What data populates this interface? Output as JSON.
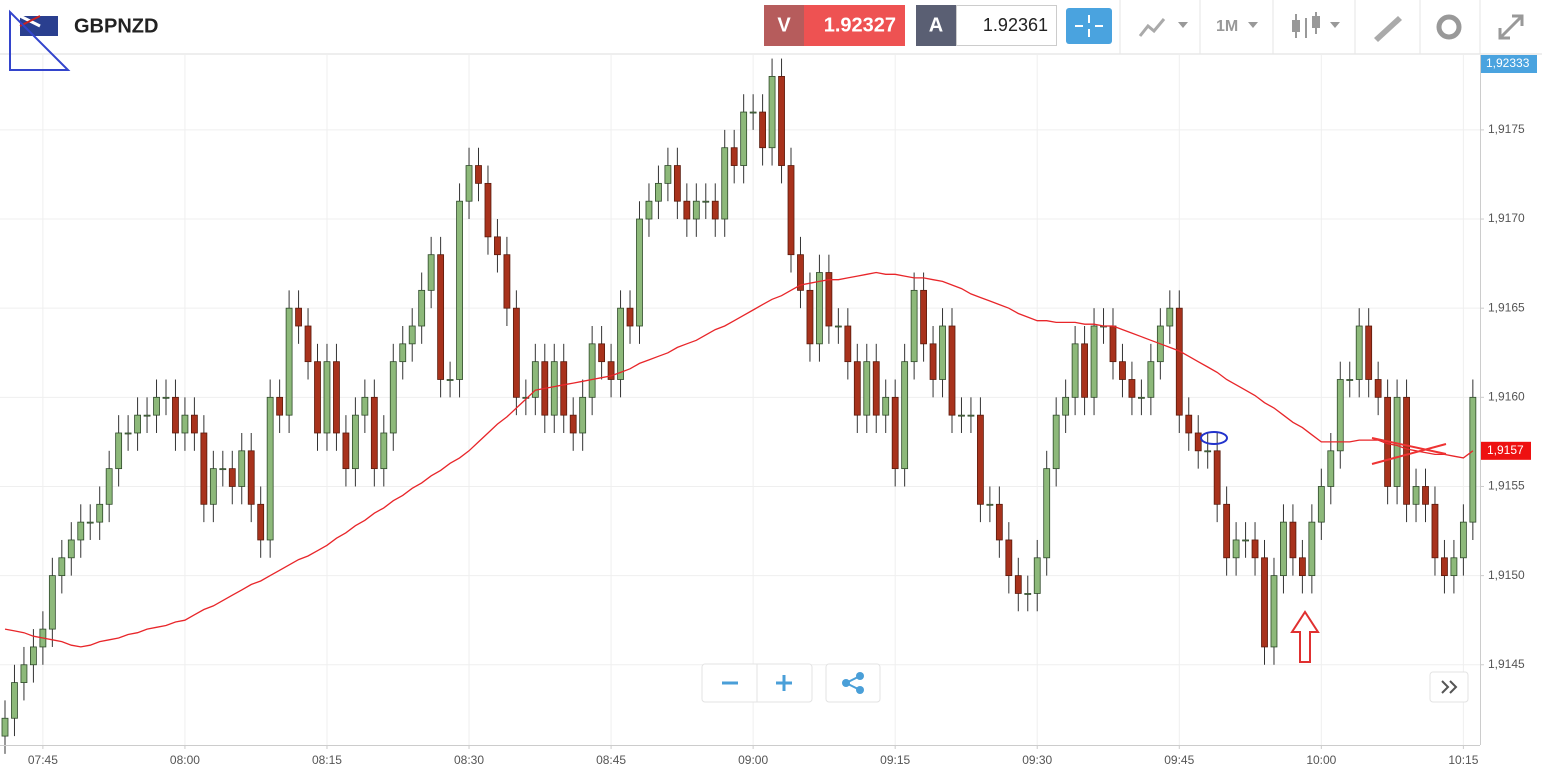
{
  "toolbar": {
    "symbol": "GBPNZD",
    "sell_label": "V",
    "sell_price": "1.92327",
    "buy_label": "A",
    "buy_price": "1.92361",
    "timeframe": "1M"
  },
  "chart_data": {
    "type": "candlestick",
    "x": [
      "07:41",
      "07:42",
      "07:43",
      "07:44",
      "07:45",
      "07:46",
      "07:47",
      "07:48",
      "07:49",
      "07:50",
      "07:51",
      "07:52",
      "07:53",
      "07:54",
      "07:55",
      "07:56",
      "07:57",
      "07:58",
      "07:59",
      "08:00",
      "08:01",
      "08:02",
      "08:03",
      "08:04",
      "08:05",
      "08:06",
      "08:07",
      "08:08",
      "08:09",
      "08:10",
      "08:11",
      "08:12",
      "08:13",
      "08:14",
      "08:15",
      "08:16",
      "08:17",
      "08:18",
      "08:19",
      "08:20",
      "08:21",
      "08:22",
      "08:23",
      "08:24",
      "08:25",
      "08:26",
      "08:27",
      "08:28",
      "08:29",
      "08:30",
      "08:31",
      "08:32",
      "08:33",
      "08:34",
      "08:35",
      "08:36",
      "08:37",
      "08:38",
      "08:39",
      "08:40",
      "08:41",
      "08:42",
      "08:43",
      "08:44",
      "08:45",
      "08:46",
      "08:47",
      "08:48",
      "08:49",
      "08:50",
      "08:51",
      "08:52",
      "08:53",
      "08:54",
      "08:55",
      "08:56",
      "08:57",
      "08:58",
      "08:59",
      "09:00",
      "09:01",
      "09:02",
      "09:03",
      "09:04",
      "09:05",
      "09:06",
      "09:07",
      "09:08",
      "09:09",
      "09:10",
      "09:11",
      "09:12",
      "09:13",
      "09:14",
      "09:15",
      "09:16",
      "09:17",
      "09:18",
      "09:19",
      "09:20",
      "09:21",
      "09:22",
      "09:23",
      "09:24",
      "09:25",
      "09:26",
      "09:27",
      "09:28",
      "09:29",
      "09:30",
      "09:31",
      "09:32",
      "09:33",
      "09:34",
      "09:35",
      "09:36",
      "09:37",
      "09:38",
      "09:39",
      "09:40",
      "09:41",
      "09:42",
      "09:43",
      "09:44",
      "09:45",
      "09:46",
      "09:47",
      "09:48",
      "09:49",
      "09:50",
      "09:51",
      "09:52",
      "09:53",
      "09:54",
      "09:55",
      "09:56",
      "09:57",
      "09:58",
      "09:59",
      "10:00",
      "10:01",
      "10:02",
      "10:03",
      "10:04",
      "10:05",
      "10:06",
      "10:07",
      "10:08",
      "10:09",
      "10:10",
      "10:11",
      "10:12",
      "10:13",
      "10:14",
      "10:15",
      "10:16"
    ],
    "open": [
      1.9141,
      1.9142,
      1.9144,
      1.9145,
      1.9146,
      1.9147,
      1.915,
      1.9151,
      1.9152,
      1.9153,
      1.9153,
      1.9154,
      1.9156,
      1.9158,
      1.9158,
      1.9159,
      1.9159,
      1.916,
      1.916,
      1.9158,
      1.9159,
      1.9158,
      1.9154,
      1.9156,
      1.9156,
      1.9155,
      1.9157,
      1.9154,
      1.9152,
      1.916,
      1.9159,
      1.9165,
      1.9164,
      1.9162,
      1.9158,
      1.9162,
      1.9158,
      1.9156,
      1.9159,
      1.916,
      1.9156,
      1.9158,
      1.9162,
      1.9163,
      1.9164,
      1.9166,
      1.9168,
      1.9161,
      1.9161,
      1.9171,
      1.9173,
      1.9172,
      1.9169,
      1.9168,
      1.9165,
      1.916,
      1.916,
      1.9162,
      1.9159,
      1.9162,
      1.9159,
      1.9158,
      1.916,
      1.9163,
      1.9162,
      1.9161,
      1.9165,
      1.9164,
      1.917,
      1.9171,
      1.9172,
      1.9173,
      1.9171,
      1.917,
      1.9171,
      1.9171,
      1.917,
      1.9174,
      1.9173,
      1.9176,
      1.9176,
      1.9174,
      1.9178,
      1.9173,
      1.9168,
      1.9166,
      1.9163,
      1.9167,
      1.9164,
      1.9164,
      1.9162,
      1.9159,
      1.9162,
      1.9159,
      1.916,
      1.9156,
      1.9162,
      1.9166,
      1.9163,
      1.9161,
      1.9164,
      1.9159,
      1.9159,
      1.9159,
      1.9154,
      1.9154,
      1.9152,
      1.915,
      1.9149,
      1.9149,
      1.9151,
      1.9156,
      1.9159,
      1.916,
      1.9163,
      1.916,
      1.9164,
      1.9164,
      1.9162,
      1.9161,
      1.916,
      1.916,
      1.9162,
      1.9164,
      1.9165,
      1.9159,
      1.9158,
      1.9157,
      1.9157,
      1.9154,
      1.9151,
      1.9152,
      1.9152,
      1.9151,
      1.9146,
      1.915,
      1.9153,
      1.9151,
      1.915,
      1.9153,
      1.9155,
      1.9157,
      1.9161,
      1.9161,
      1.9164,
      1.9161,
      1.916,
      1.9155,
      1.916,
      1.9154,
      1.9155,
      1.9154,
      1.9151,
      1.915,
      1.9151,
      1.9153
    ],
    "high": [
      1.9143,
      1.9145,
      1.9146,
      1.9147,
      1.9148,
      1.9151,
      1.9152,
      1.9153,
      1.9154,
      1.9154,
      1.9155,
      1.9157,
      1.9159,
      1.9159,
      1.916,
      1.916,
      1.9161,
      1.9161,
      1.9161,
      1.916,
      1.916,
      1.9159,
      1.9157,
      1.9157,
      1.9157,
      1.9158,
      1.9158,
      1.9155,
      1.9161,
      1.9161,
      1.9166,
      1.9166,
      1.9165,
      1.9163,
      1.9163,
      1.9163,
      1.9159,
      1.916,
      1.9161,
      1.9161,
      1.9159,
      1.9163,
      1.9164,
      1.9165,
      1.9167,
      1.9169,
      1.9169,
      1.9162,
      1.9172,
      1.9174,
      1.9174,
      1.9173,
      1.917,
      1.9169,
      1.9166,
      1.9161,
      1.9163,
      1.9163,
      1.9163,
      1.9163,
      1.916,
      1.9161,
      1.9164,
      1.9164,
      1.9163,
      1.9166,
      1.9166,
      1.9171,
      1.9172,
      1.9173,
      1.9174,
      1.9174,
      1.9172,
      1.9172,
      1.9172,
      1.9172,
      1.9175,
      1.9175,
      1.9177,
      1.9177,
      1.9177,
      1.9179,
      1.9179,
      1.9174,
      1.9169,
      1.9167,
      1.9168,
      1.9168,
      1.9165,
      1.9165,
      1.9163,
      1.9163,
      1.9163,
      1.9161,
      1.9161,
      1.9163,
      1.9167,
      1.9167,
      1.9164,
      1.9165,
      1.9165,
      1.916,
      1.916,
      1.916,
      1.9155,
      1.9155,
      1.9153,
      1.9151,
      1.915,
      1.9152,
      1.9157,
      1.916,
      1.9161,
      1.9164,
      1.9164,
      1.9165,
      1.9165,
      1.9165,
      1.9163,
      1.9162,
      1.9161,
      1.9163,
      1.9165,
      1.9166,
      1.9166,
      1.916,
      1.9159,
      1.9158,
      1.9158,
      1.9155,
      1.9153,
      1.9153,
      1.9153,
      1.9152,
      1.9151,
      1.9154,
      1.9154,
      1.9152,
      1.9154,
      1.9156,
      1.9158,
      1.9162,
      1.9162,
      1.9165,
      1.9165,
      1.9162,
      1.9161,
      1.9161,
      1.9161,
      1.9156,
      1.9156,
      1.9155,
      1.9152,
      1.9152,
      1.9154,
      1.9161
    ],
    "low": [
      1.914,
      1.9141,
      1.9143,
      1.9144,
      1.9145,
      1.9146,
      1.9149,
      1.915,
      1.9151,
      1.9152,
      1.9152,
      1.9153,
      1.9155,
      1.9157,
      1.9157,
      1.9158,
      1.9158,
      1.9159,
      1.9157,
      1.9157,
      1.9157,
      1.9153,
      1.9153,
      1.9155,
      1.9154,
      1.9154,
      1.9153,
      1.9151,
      1.9151,
      1.9158,
      1.9158,
      1.9163,
      1.9161,
      1.9157,
      1.9157,
      1.9157,
      1.9155,
      1.9155,
      1.9158,
      1.9155,
      1.9155,
      1.9157,
      1.9161,
      1.9162,
      1.9163,
      1.9165,
      1.916,
      1.916,
      1.916,
      1.917,
      1.9171,
      1.9168,
      1.9167,
      1.9164,
      1.9159,
      1.9159,
      1.9159,
      1.9158,
      1.9158,
      1.9158,
      1.9157,
      1.9157,
      1.9159,
      1.9161,
      1.916,
      1.916,
      1.9163,
      1.9163,
      1.9169,
      1.917,
      1.9171,
      1.917,
      1.9169,
      1.9169,
      1.917,
      1.9169,
      1.9169,
      1.9172,
      1.9172,
      1.9175,
      1.9173,
      1.9173,
      1.9172,
      1.9167,
      1.9165,
      1.9162,
      1.9162,
      1.9163,
      1.9163,
      1.9161,
      1.9158,
      1.9158,
      1.9158,
      1.9158,
      1.9155,
      1.9155,
      1.9161,
      1.9162,
      1.916,
      1.916,
      1.9158,
      1.9158,
      1.9158,
      1.9153,
      1.9153,
      1.9151,
      1.9149,
      1.9148,
      1.9148,
      1.9148,
      1.915,
      1.9155,
      1.9158,
      1.9159,
      1.9159,
      1.9159,
      1.9163,
      1.9161,
      1.916,
      1.9159,
      1.9159,
      1.9159,
      1.9161,
      1.9163,
      1.9158,
      1.9157,
      1.9156,
      1.9156,
      1.9153,
      1.915,
      1.915,
      1.9151,
      1.915,
      1.9145,
      1.9145,
      1.9149,
      1.915,
      1.9149,
      1.9149,
      1.9152,
      1.9154,
      1.9156,
      1.916,
      1.916,
      1.916,
      1.9159,
      1.9154,
      1.9154,
      1.9153,
      1.9153,
      1.9153,
      1.915,
      1.9149,
      1.9149,
      1.915,
      1.9152
    ],
    "close": [
      1.9142,
      1.9144,
      1.9145,
      1.9146,
      1.9147,
      1.915,
      1.9151,
      1.9152,
      1.9153,
      1.9153,
      1.9154,
      1.9156,
      1.9158,
      1.9158,
      1.9159,
      1.9159,
      1.916,
      1.916,
      1.9158,
      1.9159,
      1.9158,
      1.9154,
      1.9156,
      1.9156,
      1.9155,
      1.9157,
      1.9154,
      1.9152,
      1.916,
      1.9159,
      1.9165,
      1.9164,
      1.9162,
      1.9158,
      1.9162,
      1.9158,
      1.9156,
      1.9159,
      1.916,
      1.9156,
      1.9158,
      1.9162,
      1.9163,
      1.9164,
      1.9166,
      1.9168,
      1.9161,
      1.9161,
      1.9171,
      1.9173,
      1.9172,
      1.9169,
      1.9168,
      1.9165,
      1.916,
      1.916,
      1.9162,
      1.9159,
      1.9162,
      1.9159,
      1.9158,
      1.916,
      1.9163,
      1.9162,
      1.9161,
      1.9165,
      1.9164,
      1.917,
      1.9171,
      1.9172,
      1.9173,
      1.9171,
      1.917,
      1.9171,
      1.9171,
      1.917,
      1.9174,
      1.9173,
      1.9176,
      1.9176,
      1.9174,
      1.9178,
      1.9173,
      1.9168,
      1.9166,
      1.9163,
      1.9167,
      1.9164,
      1.9164,
      1.9162,
      1.9159,
      1.9162,
      1.9159,
      1.916,
      1.9156,
      1.9162,
      1.9166,
      1.9163,
      1.9161,
      1.9164,
      1.9159,
      1.9159,
      1.9159,
      1.9154,
      1.9154,
      1.9152,
      1.915,
      1.9149,
      1.9149,
      1.9151,
      1.9156,
      1.9159,
      1.916,
      1.9163,
      1.916,
      1.9164,
      1.9164,
      1.9162,
      1.9161,
      1.916,
      1.916,
      1.9162,
      1.9164,
      1.9165,
      1.9159,
      1.9158,
      1.9157,
      1.9157,
      1.9154,
      1.9151,
      1.9152,
      1.9152,
      1.9151,
      1.9146,
      1.915,
      1.9153,
      1.9151,
      1.915,
      1.9153,
      1.9155,
      1.9157,
      1.9161,
      1.9161,
      1.9164,
      1.9161,
      1.916,
      1.9155,
      1.916,
      1.9154,
      1.9155,
      1.9154,
      1.9151,
      1.915,
      1.9151,
      1.9153,
      1.916
    ],
    "up_color": "#8db97a",
    "down_color": "#a8321c",
    "overlay": {
      "color": "#e8262a",
      "values": [
        1.9147,
        1.91469,
        1.91468,
        1.91466,
        1.91465,
        1.91464,
        1.91463,
        1.91461,
        1.9146,
        1.91461,
        1.91463,
        1.91464,
        1.91465,
        1.91467,
        1.91468,
        1.9147,
        1.91471,
        1.91472,
        1.91474,
        1.91475,
        1.91478,
        1.91481,
        1.91483,
        1.91486,
        1.91489,
        1.91492,
        1.91495,
        1.91497,
        1.915,
        1.91503,
        1.91506,
        1.91509,
        1.91511,
        1.91514,
        1.91517,
        1.91521,
        1.91524,
        1.91528,
        1.91531,
        1.91535,
        1.91538,
        1.91542,
        1.91545,
        1.91549,
        1.91552,
        1.91556,
        1.91559,
        1.91563,
        1.91566,
        1.9157,
        1.91575,
        1.9158,
        1.91585,
        1.91589,
        1.91594,
        1.91599,
        1.91604,
        1.91605,
        1.91606,
        1.91607,
        1.91608,
        1.91609,
        1.9161,
        1.91611,
        1.91612,
        1.91614,
        1.91616,
        1.91619,
        1.91621,
        1.91623,
        1.91625,
        1.91628,
        1.9163,
        1.91632,
        1.91635,
        1.91638,
        1.9164,
        1.91643,
        1.91646,
        1.91649,
        1.91652,
        1.91655,
        1.91657,
        1.9166,
        1.91663,
        1.91664,
        1.91665,
        1.91666,
        1.91666,
        1.91667,
        1.91668,
        1.91669,
        1.9167,
        1.91669,
        1.91669,
        1.91668,
        1.91667,
        1.91667,
        1.91666,
        1.91665,
        1.91663,
        1.91661,
        1.91658,
        1.91656,
        1.91654,
        1.91652,
        1.9165,
        1.91647,
        1.91645,
        1.91643,
        1.91643,
        1.91642,
        1.91642,
        1.91642,
        1.91641,
        1.91641,
        1.9164,
        1.9164,
        1.91638,
        1.91636,
        1.91634,
        1.91632,
        1.9163,
        1.91628,
        1.91626,
        1.91623,
        1.9162,
        1.91617,
        1.91614,
        1.9161,
        1.91607,
        1.91604,
        1.91601,
        1.91597,
        1.91594,
        1.9159,
        1.91586,
        1.91583,
        1.91579,
        1.91575,
        1.91575,
        1.91575,
        1.91575,
        1.91576,
        1.91576,
        1.91576,
        1.91574,
        1.91573,
        1.91571,
        1.9157,
        1.91569,
        1.91568,
        1.91568,
        1.91567,
        1.91566,
        1.9157
      ]
    },
    "ylim": [
      1.91405,
      1.91792
    ],
    "yticks": [
      {
        "value": 1.9145,
        "label": "1,9145"
      },
      {
        "value": 1.915,
        "label": "1,9150"
      },
      {
        "value": 1.9155,
        "label": "1,9155"
      },
      {
        "value": 1.916,
        "label": "1,9160"
      },
      {
        "value": 1.9165,
        "label": "1,9165"
      },
      {
        "value": 1.917,
        "label": "1,9170"
      },
      {
        "value": 1.9175,
        "label": "1,9175"
      }
    ],
    "xticks": [
      "07:45",
      "08:00",
      "08:15",
      "08:30",
      "08:45",
      "09:00",
      "09:15",
      "09:30",
      "09:45",
      "10:00",
      "10:15"
    ],
    "grid": true,
    "pinned_label": "1,92333",
    "last_price": {
      "value": 1.9157,
      "label": "1,9157"
    }
  }
}
